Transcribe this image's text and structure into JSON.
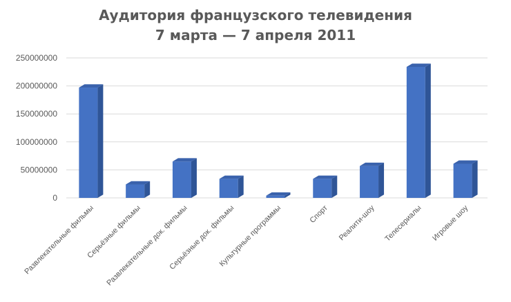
{
  "chart_data": {
    "type": "bar",
    "title_lines": [
      "Аудитория французского телевидения",
      "7 марта — 7 апреля 2011"
    ],
    "categories": [
      "Развлекательные фильмы",
      "Серьёзные фильмы",
      "Развлекательные док. фильмы",
      "Серьёзные док. фильмы",
      "Культурные программы",
      "Спорт",
      "Реалити-шоу",
      "Телесериалы",
      "Игровые шоу"
    ],
    "values": [
      197000000,
      24000000,
      65000000,
      34000000,
      4000000,
      34000000,
      57000000,
      234000000,
      61000000
    ],
    "y_ticks": [
      "0",
      "50000000",
      "100000000",
      "150000000",
      "200000000",
      "250000000"
    ],
    "ylim": [
      0,
      250000000
    ],
    "grid": true,
    "legend": "none",
    "colors": {
      "bar_front": "#4472C4",
      "bar_side": "#2F5597",
      "bar_top": "#3A62AC",
      "grid": "#D9D9D9",
      "text": "#595959"
    }
  }
}
